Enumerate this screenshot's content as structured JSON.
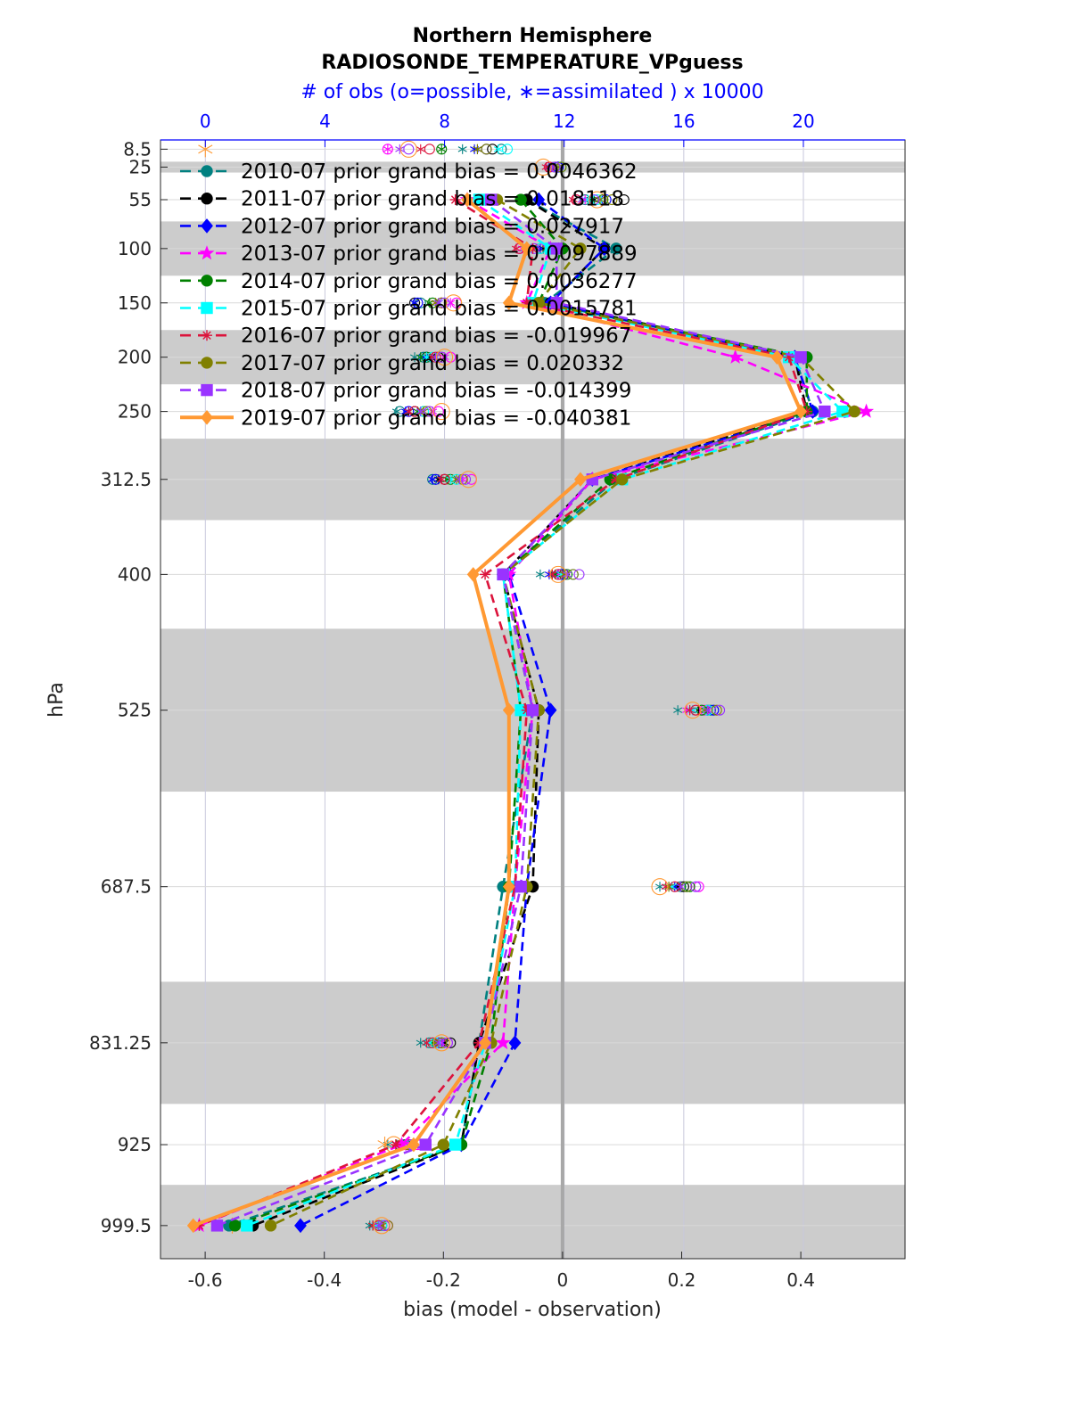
{
  "chart_data": {
    "type": "line",
    "title": "Northern Hemisphere",
    "subtitle": "RADIOSONDE_TEMPERATURE_VPguess",
    "top_axis_label": "# of obs (o=possible, ∗=assimilated ) x 10000",
    "xlabel": "bias (model - observation)",
    "ylabel": "hPa",
    "xlim": [
      -0.675,
      0.575
    ],
    "x_ticks": [
      "-0.6",
      "-0.4",
      "-0.2",
      "0",
      "0.2",
      "0.4"
    ],
    "x_tick_values": [
      -0.6,
      -0.4,
      -0.2,
      0,
      0.2,
      0.4
    ],
    "top_xlim": [
      -1.5,
      23.4
    ],
    "top_ticks": [
      "0",
      "4",
      "8",
      "12",
      "16",
      "20"
    ],
    "top_tick_values": [
      0,
      4,
      8,
      12,
      16,
      20
    ],
    "levels": [
      "8.5",
      "25",
      "55",
      "100",
      "150",
      "200",
      "250",
      "312.5",
      "400",
      "525",
      "687.5",
      "831.25",
      "925",
      "999.5"
    ],
    "level_values": [
      8.5,
      25,
      55,
      100,
      150,
      200,
      250,
      312.5,
      400,
      525,
      687.5,
      831.25,
      925,
      999.5
    ],
    "ylim": [
      0,
      1030
    ],
    "shaded_bands": [
      [
        20,
        30
      ],
      [
        75,
        125
      ],
      [
        175,
        225
      ],
      [
        275,
        350
      ],
      [
        450,
        600
      ],
      [
        775,
        887.5
      ],
      [
        962,
        1030
      ]
    ],
    "grid": true,
    "legend_position": "top-left",
    "colors": {
      "top_axis": "#0000ff",
      "band": "#cccccc",
      "zero_line": "#a8a8a8",
      "grid": "#c8c8dc"
    },
    "series": [
      {
        "name": "2010-07 prior grand bias = 0.0046362",
        "color": "#008080",
        "marker": "circle",
        "dash": true,
        "bias": [
          null,
          null,
          -0.06,
          0.09,
          -0.03,
          0.39,
          0.42,
          0.09,
          -0.1,
          -0.05,
          -0.1,
          -0.14,
          -0.17,
          -0.56
        ],
        "possible": [
          9.9,
          11.9,
          12.7,
          null,
          7.2,
          7.3,
          6.5,
          7.6,
          11.8,
          16.9,
          15.9,
          7.5,
          6.6,
          5.8
        ],
        "assimilated": [
          8.6,
          11.5,
          10.6,
          10.7,
          7.0,
          7.0,
          6.4,
          7.6,
          11.2,
          15.8,
          15.2,
          7.2,
          6.1,
          5.5
        ]
      },
      {
        "name": "2011-07 prior grand bias = 0.018118",
        "color": "#000000",
        "marker": "circle",
        "dash": true,
        "bias": [
          null,
          null,
          -0.06,
          0.07,
          -0.02,
          0.39,
          0.41,
          0.05,
          -0.1,
          -0.04,
          -0.05,
          -0.14,
          -0.17,
          -0.52
        ],
        "possible": [
          9.6,
          11.8,
          14.0,
          11.6,
          7.0,
          7.8,
          7.0,
          8.0,
          12.0,
          16.8,
          16.0,
          8.2,
          6.8,
          5.9
        ],
        "assimilated": [
          9.1,
          11.6,
          13.0,
          11.3,
          7.0,
          7.5,
          6.8,
          7.8,
          11.6,
          16.5,
          15.8,
          8.0,
          6.5,
          5.6
        ]
      },
      {
        "name": "2012-07 prior grand bias = 0.027917",
        "color": "#0000ff",
        "marker": "diamond",
        "dash": true,
        "bias": [
          null,
          null,
          -0.04,
          0.07,
          -0.02,
          0.39,
          0.42,
          0.05,
          -0.09,
          -0.02,
          -0.06,
          -0.08,
          -0.17,
          -0.44
        ],
        "possible": [
          9.4,
          11.8,
          13.4,
          11.6,
          7.1,
          7.4,
          6.8,
          7.7,
          11.9,
          17.0,
          16.1,
          7.8,
          6.7,
          6.0
        ],
        "assimilated": [
          9.0,
          11.5,
          12.9,
          11.2,
          7.0,
          7.3,
          6.7,
          7.6,
          11.5,
          16.3,
          15.7,
          7.6,
          6.4,
          5.7
        ]
      },
      {
        "name": "2013-07 prior grand bias = 0.0097889",
        "color": "#ff00ff",
        "marker": "star",
        "dash": true,
        "bias": [
          null,
          null,
          -0.16,
          -0.02,
          -0.06,
          0.29,
          0.51,
          0.05,
          -0.09,
          -0.05,
          -0.08,
          -0.1,
          -0.27,
          -0.61
        ],
        "possible": [
          6.1,
          11.5,
          12.4,
          10.5,
          8.4,
          8.2,
          7.8,
          8.9,
          12.3,
          16.7,
          16.5,
          8.1,
          7.1,
          6.1
        ],
        "assimilated": [
          6.1,
          11.6,
          12.7,
          10.6,
          8.2,
          8.0,
          7.6,
          8.6,
          11.8,
          16.1,
          15.4,
          7.9,
          6.8,
          5.9
        ]
      },
      {
        "name": "2014-07 prior grand bias = 0.0036277",
        "color": "#008000",
        "marker": "hexagon",
        "dash": true,
        "bias": [
          null,
          null,
          -0.07,
          0.0,
          -0.04,
          0.41,
          0.41,
          0.08,
          -0.1,
          -0.07,
          -0.09,
          -0.12,
          -0.17,
          -0.55
        ],
        "possible": [
          7.9,
          11.7,
          13.3,
          11.2,
          7.6,
          7.4,
          7.3,
          8.2,
          12.1,
          16.6,
          16.2,
          7.9,
          6.7,
          5.8
        ],
        "assimilated": [
          7.9,
          11.6,
          12.9,
          10.8,
          7.5,
          7.2,
          7.1,
          8.1,
          11.7,
          16.2,
          15.5,
          7.6,
          6.4,
          5.6
        ]
      },
      {
        "name": "2015-07 prior grand bias = 0.0015781",
        "color": "#00ffff",
        "marker": "square",
        "dash": true,
        "bias": [
          null,
          null,
          -0.14,
          -0.02,
          -0.05,
          0.38,
          0.47,
          0.1,
          -0.1,
          -0.07,
          -0.08,
          -0.13,
          -0.18,
          -0.53
        ],
        "possible": [
          10.1,
          11.9,
          13.1,
          11.2,
          8.0,
          7.6,
          7.3,
          8.4,
          12.3,
          16.8,
          16.1,
          7.7,
          6.9,
          5.9
        ],
        "assimilated": [
          9.8,
          11.8,
          12.8,
          10.9,
          7.8,
          7.4,
          7.2,
          8.2,
          11.9,
          16.3,
          15.6,
          7.5,
          6.5,
          5.7
        ]
      },
      {
        "name": "2016-07 prior grand bias = -0.019967",
        "color": "#dc143c",
        "marker": "asterisk",
        "dash": true,
        "bias": [
          null,
          null,
          -0.18,
          -0.05,
          -0.06,
          0.38,
          0.41,
          0.09,
          -0.13,
          -0.06,
          -0.08,
          -0.14,
          -0.28,
          -0.61
        ],
        "possible": [
          7.5,
          11.5,
          12.4,
          10.5,
          7.9,
          7.7,
          7.0,
          8.0,
          11.8,
          16.4,
          15.7,
          7.6,
          6.8,
          5.8
        ],
        "assimilated": [
          7.2,
          11.4,
          12.3,
          10.4,
          7.7,
          7.6,
          6.8,
          7.9,
          11.6,
          16.2,
          15.4,
          7.4,
          6.5,
          5.6
        ]
      },
      {
        "name": "2017-07 prior grand bias = 0.020332",
        "color": "#808000",
        "marker": "circle",
        "dash": true,
        "bias": [
          null,
          null,
          -0.11,
          0.03,
          -0.04,
          0.4,
          0.49,
          0.1,
          -0.1,
          -0.04,
          -0.06,
          -0.12,
          -0.2,
          -0.49
        ],
        "possible": [
          9.4,
          11.9,
          13.6,
          11.8,
          7.9,
          7.9,
          7.4,
          8.6,
          12.3,
          17.1,
          16.1,
          7.9,
          6.8,
          6.1
        ],
        "assimilated": [
          9.1,
          11.8,
          13.2,
          11.4,
          7.7,
          7.7,
          7.3,
          8.4,
          12.0,
          16.7,
          15.5,
          7.7,
          6.6,
          5.9
        ]
      },
      {
        "name": "2018-07 prior grand bias = -0.014399",
        "color": "#9933ff",
        "marker": "square",
        "dash": true,
        "bias": [
          null,
          null,
          -0.12,
          -0.01,
          -0.01,
          0.4,
          0.44,
          0.05,
          -0.1,
          -0.05,
          -0.07,
          -0.13,
          -0.23,
          -0.58
        ],
        "possible": [
          6.8,
          11.7,
          13.0,
          11.0,
          8.0,
          7.9,
          7.5,
          8.7,
          12.5,
          17.2,
          16.4,
          8.1,
          6.9,
          6.0
        ],
        "assimilated": [
          6.5,
          11.6,
          12.6,
          10.8,
          7.8,
          7.7,
          7.2,
          8.5,
          12.1,
          16.8,
          15.9,
          7.8,
          6.6,
          5.8
        ]
      },
      {
        "name": "2019-07 prior grand bias = -0.040381",
        "color": "#ff9933",
        "marker": "diamond",
        "dash": false,
        "bias": [
          null,
          null,
          -0.16,
          -0.06,
          -0.09,
          0.36,
          0.4,
          0.03,
          -0.15,
          -0.09,
          -0.09,
          -0.13,
          -0.25,
          -0.62
        ],
        "possible": [
          6.8,
          11.3,
          13.1,
          null,
          8.3,
          8.0,
          7.9,
          8.8,
          11.8,
          16.3,
          15.2,
          7.9,
          6.3,
          5.9
        ],
        "assimilated": [
          0,
          null,
          null,
          null,
          null,
          null,
          null,
          null,
          null,
          null,
          null,
          null,
          6.0,
          0.9
        ]
      }
    ]
  }
}
